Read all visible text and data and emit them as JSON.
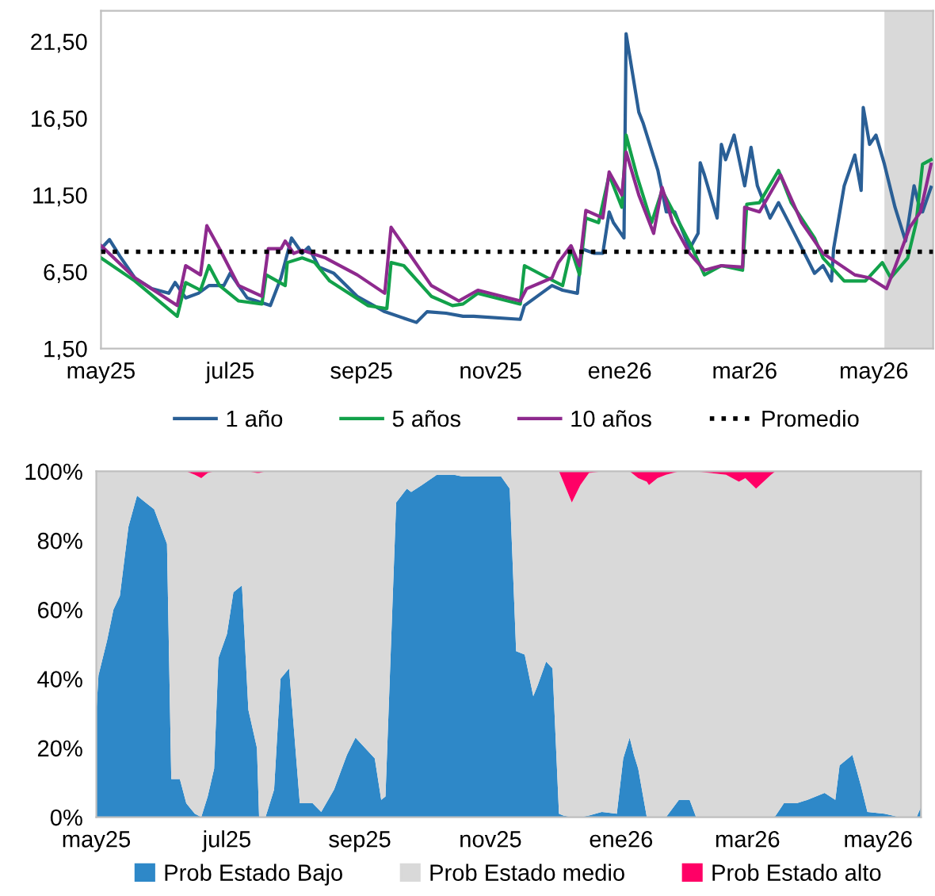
{
  "chart_data": [
    {
      "type": "line",
      "xlim": [
        "2025-05-01",
        "2026-05-29"
      ],
      "ylim": [
        1.5,
        23.5
      ],
      "xticks": [
        {
          "value": "2025-05-01",
          "label": "may25"
        },
        {
          "value": "2025-07-01",
          "label": "jul25"
        },
        {
          "value": "2025-09-01",
          "label": "sep25"
        },
        {
          "value": "2025-11-01",
          "label": "nov25"
        },
        {
          "value": "2026-01-01",
          "label": "ene26"
        },
        {
          "value": "2026-03-01",
          "label": "mar26"
        },
        {
          "value": "2026-05-01",
          "label": "may26"
        }
      ],
      "yticks": [
        {
          "value": 1.5,
          "label": "1,50"
        },
        {
          "value": 6.5,
          "label": "6,50"
        },
        {
          "value": 11.5,
          "label": "11,50"
        },
        {
          "value": 16.5,
          "label": "16,50"
        },
        {
          "value": 21.5,
          "label": "21,50"
        }
      ],
      "grid": false,
      "legend": "bottom",
      "bands": [
        {
          "axis": "x",
          "from": "2026-05-06",
          "to": "2026-05-29",
          "color": "#d9d9d9"
        }
      ],
      "series": [
        {
          "name": "1 año",
          "color": "#2a5f96",
          "x": [
            "2025-05-01",
            "2025-05-05",
            "2025-05-10",
            "2025-05-17",
            "2025-05-25",
            "2025-06-02",
            "2025-06-05",
            "2025-06-10",
            "2025-06-16",
            "2025-06-21",
            "2025-06-28",
            "2025-07-01",
            "2025-07-09",
            "2025-07-20",
            "2025-07-25",
            "2025-07-30",
            "2025-08-04",
            "2025-08-07",
            "2025-08-12",
            "2025-08-19",
            "2025-08-30",
            "2025-09-12",
            "2025-09-27",
            "2025-10-02",
            "2025-10-11",
            "2025-10-19",
            "2025-10-24",
            "2025-11-15",
            "2025-11-17",
            "2025-11-30",
            "2025-12-05",
            "2025-12-12",
            "2025-12-14",
            "2025-12-20",
            "2025-12-24",
            "2025-12-27",
            "2025-12-29",
            "2026-01-03",
            "2026-01-04",
            "2026-01-10",
            "2026-01-12",
            "2026-01-19",
            "2026-01-23",
            "2026-01-27",
            "2026-02-03",
            "2026-02-07",
            "2026-02-08",
            "2026-02-10",
            "2026-02-16",
            "2026-02-18",
            "2026-02-20",
            "2026-02-24",
            "2026-03-01",
            "2026-03-04",
            "2026-03-07",
            "2026-03-13",
            "2026-03-17",
            "2026-03-23",
            "2026-04-03",
            "2026-04-07",
            "2026-04-11",
            "2026-04-12",
            "2026-04-17",
            "2026-04-22",
            "2026-04-25",
            "2026-04-26",
            "2026-04-29",
            "2026-05-02",
            "2026-05-06",
            "2026-05-11",
            "2026-05-16",
            "2026-05-20",
            "2026-05-22",
            "2026-05-24",
            "2026-05-28"
          ],
          "values": [
            8.0,
            8.6,
            7.5,
            6.1,
            5.4,
            5.1,
            5.8,
            4.8,
            5.1,
            5.6,
            5.6,
            6.4,
            4.8,
            4.3,
            6.1,
            8.7,
            7.7,
            8.1,
            6.8,
            6.4,
            4.9,
            3.9,
            3.2,
            3.9,
            3.8,
            3.6,
            3.6,
            3.4,
            4.3,
            5.6,
            5.3,
            5.1,
            8.0,
            7.7,
            7.7,
            10.4,
            9.7,
            8.7,
            22.0,
            16.9,
            16.2,
            13.1,
            10.4,
            10.4,
            8.0,
            9.0,
            13.6,
            12.8,
            10.0,
            14.8,
            13.8,
            15.4,
            12.1,
            14.6,
            12.1,
            10.0,
            11.0,
            9.4,
            6.4,
            6.9,
            5.9,
            8.0,
            12.1,
            14.1,
            11.8,
            17.2,
            14.8,
            15.4,
            13.5,
            10.7,
            8.5,
            12.1,
            11.0,
            10.4,
            12.0
          ]
        },
        {
          "name": "5 años",
          "color": "#12a14a",
          "x": [
            "2025-05-01",
            "2025-05-17",
            "2025-06-06",
            "2025-06-10",
            "2025-06-17",
            "2025-06-21",
            "2025-06-26",
            "2025-07-05",
            "2025-07-16",
            "2025-07-18",
            "2025-07-27",
            "2025-07-28",
            "2025-08-04",
            "2025-08-10",
            "2025-08-17",
            "2025-09-04",
            "2025-09-13",
            "2025-09-15",
            "2025-09-21",
            "2025-10-04",
            "2025-10-14",
            "2025-10-19",
            "2025-10-26",
            "2025-11-15",
            "2025-11-17",
            "2025-11-28",
            "2025-12-05",
            "2025-12-09",
            "2025-12-13",
            "2025-12-16",
            "2025-12-22",
            "2025-12-27",
            "2026-01-02",
            "2026-01-04",
            "2026-01-09",
            "2026-01-16",
            "2026-01-21",
            "2026-01-29",
            "2026-02-03",
            "2026-02-10",
            "2026-02-18",
            "2026-02-28",
            "2026-03-02",
            "2026-03-08",
            "2026-03-17",
            "2026-03-23",
            "2026-04-03",
            "2026-04-07",
            "2026-04-17",
            "2026-04-27",
            "2026-05-05",
            "2026-05-09",
            "2026-05-17",
            "2026-05-21",
            "2026-05-24",
            "2026-05-28"
          ],
          "values": [
            7.4,
            5.9,
            3.6,
            5.8,
            5.3,
            6.9,
            5.6,
            4.6,
            4.4,
            6.3,
            5.6,
            7.1,
            7.4,
            7.1,
            5.9,
            4.3,
            4.1,
            7.1,
            6.9,
            4.9,
            4.3,
            4.4,
            5.1,
            4.4,
            6.9,
            6.1,
            5.6,
            8.0,
            6.3,
            10.0,
            9.7,
            12.8,
            10.7,
            15.4,
            12.8,
            9.7,
            11.8,
            9.7,
            8.4,
            6.3,
            6.9,
            6.6,
            10.9,
            11.0,
            13.1,
            11.0,
            8.7,
            7.4,
            5.9,
            5.9,
            7.1,
            6.1,
            7.4,
            9.7,
            13.5,
            13.8
          ]
        },
        {
          "name": "10 años",
          "color": "#8e2a8e",
          "x": [
            "2025-05-01",
            "2025-05-17",
            "2025-06-06",
            "2025-06-10",
            "2025-06-17",
            "2025-06-20",
            "2025-06-26",
            "2025-07-05",
            "2025-07-16",
            "2025-07-19",
            "2025-07-25",
            "2025-07-27",
            "2025-07-31",
            "2025-08-04",
            "2025-08-15",
            "2025-08-30",
            "2025-09-12",
            "2025-09-15",
            "2025-09-22",
            "2025-10-04",
            "2025-10-17",
            "2025-10-26",
            "2025-11-15",
            "2025-11-18",
            "2025-11-30",
            "2025-12-03",
            "2025-12-09",
            "2025-12-13",
            "2025-12-16",
            "2025-12-24",
            "2025-12-27",
            "2026-01-02",
            "2026-01-04",
            "2026-01-10",
            "2026-01-17",
            "2026-01-21",
            "2026-01-26",
            "2026-02-03",
            "2026-02-10",
            "2026-02-18",
            "2026-02-28",
            "2026-03-01",
            "2026-03-08",
            "2026-03-18",
            "2026-03-28",
            "2026-04-07",
            "2026-04-22",
            "2026-04-29",
            "2026-05-07",
            "2026-05-11",
            "2026-05-18",
            "2026-05-23",
            "2026-05-28"
          ],
          "values": [
            8.2,
            6.1,
            4.3,
            6.9,
            6.3,
            9.5,
            8.0,
            5.6,
            4.9,
            8.0,
            8.0,
            8.5,
            7.7,
            7.9,
            7.4,
            6.3,
            5.1,
            9.4,
            8.0,
            5.6,
            4.6,
            5.3,
            4.6,
            5.4,
            6.1,
            7.1,
            8.2,
            6.9,
            10.5,
            10.0,
            13.0,
            11.5,
            14.3,
            11.5,
            9.0,
            12.0,
            9.7,
            7.7,
            6.6,
            6.9,
            6.8,
            10.7,
            10.4,
            12.8,
            9.7,
            7.7,
            6.3,
            6.1,
            5.4,
            6.8,
            9.4,
            10.4,
            13.5
          ]
        },
        {
          "name": "Promedio",
          "color": "#000000",
          "line_style": "dotted",
          "x": [
            "2025-05-01",
            "2026-05-29"
          ],
          "values": [
            7.8,
            7.8
          ]
        }
      ]
    },
    {
      "type": "area",
      "stacked": true,
      "xlim": [
        "2025-05-01",
        "2026-05-21"
      ],
      "ylim": [
        0,
        100
      ],
      "xticks": [
        {
          "value": "2025-05-01",
          "label": "may25"
        },
        {
          "value": "2025-07-01",
          "label": "jul25"
        },
        {
          "value": "2025-09-01",
          "label": "sep25"
        },
        {
          "value": "2025-11-01",
          "label": "nov25"
        },
        {
          "value": "2026-01-01",
          "label": "ene26"
        },
        {
          "value": "2026-03-01",
          "label": "mar26"
        },
        {
          "value": "2026-05-01",
          "label": "may26"
        }
      ],
      "yticks": [
        {
          "value": 0,
          "label": "0%"
        },
        {
          "value": 20,
          "label": "20%"
        },
        {
          "value": 40,
          "label": "40%"
        },
        {
          "value": 60,
          "label": "60%"
        },
        {
          "value": 80,
          "label": "80%"
        },
        {
          "value": 100,
          "label": "100%"
        }
      ],
      "grid": false,
      "legend": "bottom",
      "x": [
        "2025-05-01",
        "2025-05-02",
        "2025-05-06",
        "2025-05-09",
        "2025-05-12",
        "2025-05-16",
        "2025-05-20",
        "2025-05-24",
        "2025-05-28",
        "2025-06-03",
        "2025-06-05",
        "2025-06-09",
        "2025-06-12",
        "2025-06-16",
        "2025-06-19",
        "2025-06-22",
        "2025-06-25",
        "2025-06-27",
        "2025-07-01",
        "2025-07-04",
        "2025-07-08",
        "2025-07-11",
        "2025-07-15",
        "2025-07-16",
        "2025-07-19",
        "2025-07-23",
        "2025-07-26",
        "2025-07-30",
        "2025-08-04",
        "2025-08-10",
        "2025-08-14",
        "2025-08-20",
        "2025-08-23",
        "2025-08-26",
        "2025-08-30",
        "2025-09-02",
        "2025-09-08",
        "2025-09-11",
        "2025-09-13",
        "2025-09-18",
        "2025-09-23",
        "2025-09-25",
        "2025-09-30",
        "2025-10-07",
        "2025-10-15",
        "2025-10-19",
        "2025-11-01",
        "2025-11-06",
        "2025-11-10",
        "2025-11-13",
        "2025-11-17",
        "2025-11-21",
        "2025-11-23",
        "2025-11-27",
        "2025-11-30",
        "2025-12-03",
        "2025-12-05",
        "2025-12-09",
        "2025-12-13",
        "2025-12-17",
        "2025-12-23",
        "2025-12-30",
        "2026-01-02",
        "2026-01-05",
        "2026-01-07",
        "2026-01-09",
        "2026-01-13",
        "2026-01-14",
        "2026-01-18",
        "2026-01-22",
        "2026-01-28",
        "2026-02-02",
        "2026-02-05",
        "2026-02-19",
        "2026-02-25",
        "2026-02-28",
        "2026-03-05",
        "2026-03-12",
        "2026-03-14",
        "2026-03-18",
        "2026-03-24",
        "2026-03-29",
        "2026-04-06",
        "2026-04-11",
        "2026-04-13",
        "2026-04-19",
        "2026-04-23",
        "2026-04-26",
        "2026-05-04",
        "2026-05-11",
        "2026-05-19",
        "2026-05-21"
      ],
      "series": [
        {
          "name": "Prob Estado Bajo",
          "color": "#2e88c8",
          "values": [
            30,
            41,
            51,
            60,
            64,
            84,
            93,
            91,
            89,
            79,
            11,
            11,
            4,
            1,
            0,
            6,
            14,
            46,
            53,
            65,
            67,
            31,
            20,
            0,
            0,
            8,
            40,
            43,
            4,
            4,
            1.5,
            8,
            13,
            18,
            23,
            21,
            17,
            5,
            6,
            91,
            95,
            94,
            96,
            99,
            99,
            98.5,
            98.5,
            98.5,
            95,
            48,
            47,
            35,
            38,
            45,
            43,
            1,
            0.5,
            0,
            0,
            0.5,
            1.5,
            1,
            17,
            23,
            18,
            14,
            0,
            0,
            0,
            0,
            5,
            5,
            0,
            0,
            0,
            0,
            0,
            0,
            0.3,
            4,
            4,
            5,
            7,
            5,
            15,
            18,
            9,
            1.5,
            1,
            0,
            0,
            3
          ]
        },
        {
          "name": "Prob Estado medio",
          "color": "#d9d9d9",
          "values": [
            70,
            59,
            49,
            40,
            36,
            16,
            7,
            9,
            11,
            21,
            89,
            89,
            96,
            98,
            98,
            93.5,
            86,
            54,
            47,
            35,
            33,
            69,
            79.5,
            99.5,
            100,
            92,
            60,
            57,
            96,
            96,
            98.5,
            92,
            87,
            82,
            77,
            79,
            83,
            95,
            94,
            9,
            5,
            6,
            4,
            1,
            1,
            1.5,
            1.5,
            1.5,
            5,
            52,
            53,
            65,
            62,
            55,
            57,
            99,
            96.5,
            91,
            96,
            99,
            98.5,
            99,
            83,
            77,
            81,
            84,
            97,
            96,
            98,
            99,
            95,
            95,
            100,
            99,
            97,
            98,
            95,
            99,
            99.7,
            96,
            96,
            95,
            93,
            95,
            85,
            82,
            91,
            98.5,
            99,
            100,
            100,
            97
          ]
        },
        {
          "name": "Prob Estado alto",
          "color": "#ff0066",
          "values": [
            0,
            0,
            0,
            0,
            0,
            0,
            0,
            0,
            0,
            0,
            0,
            0,
            0,
            1,
            2,
            0.5,
            0,
            0,
            0,
            0,
            0,
            0,
            0.5,
            0.5,
            0,
            0,
            0,
            0,
            0,
            0,
            0,
            0,
            0,
            0,
            0,
            0,
            0,
            0,
            0,
            0,
            0,
            0,
            0,
            0,
            0,
            0,
            0,
            0,
            0,
            0,
            0,
            0,
            0,
            0,
            0,
            0,
            3,
            9,
            4,
            0.5,
            0,
            0,
            0,
            0,
            1,
            2,
            3,
            4,
            2,
            1,
            0,
            0,
            0,
            1,
            3,
            2,
            5,
            1,
            0,
            0,
            0,
            0,
            0,
            0,
            0,
            0,
            0,
            0,
            0,
            0,
            0,
            0
          ]
        }
      ]
    }
  ]
}
